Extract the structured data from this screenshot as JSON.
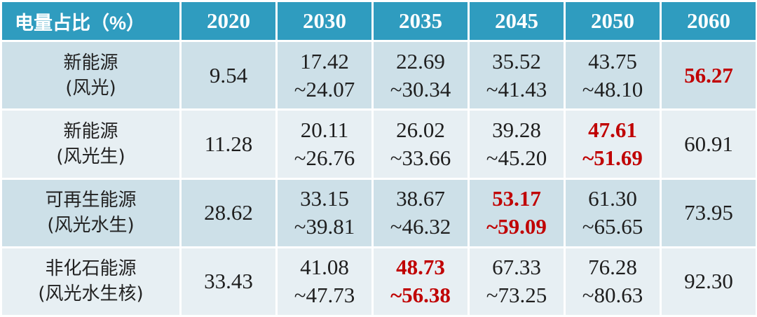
{
  "header": {
    "label": "电量占比（%）",
    "years": [
      "2020",
      "2030",
      "2035",
      "2045",
      "2050",
      "2060"
    ]
  },
  "rows": [
    {
      "label": [
        "新能源",
        "(风光)"
      ],
      "cells": [
        {
          "lines": [
            "9.54"
          ],
          "highlight": false
        },
        {
          "lines": [
            "17.42",
            "~24.07"
          ],
          "highlight": false
        },
        {
          "lines": [
            "22.69",
            "~30.34"
          ],
          "highlight": false
        },
        {
          "lines": [
            "35.52",
            "~41.43"
          ],
          "highlight": false
        },
        {
          "lines": [
            "43.75",
            "~48.10"
          ],
          "highlight": false
        },
        {
          "lines": [
            "56.27"
          ],
          "highlight": true
        }
      ]
    },
    {
      "label": [
        "新能源",
        "(风光生)"
      ],
      "cells": [
        {
          "lines": [
            "11.28"
          ],
          "highlight": false
        },
        {
          "lines": [
            "20.11",
            "~26.76"
          ],
          "highlight": false
        },
        {
          "lines": [
            "26.02",
            "~33.66"
          ],
          "highlight": false
        },
        {
          "lines": [
            "39.28",
            "~45.20"
          ],
          "highlight": false
        },
        {
          "lines": [
            "47.61",
            "~51.69"
          ],
          "highlight": true
        },
        {
          "lines": [
            "60.91"
          ],
          "highlight": false
        }
      ]
    },
    {
      "label": [
        "可再生能源",
        "(风光水生)"
      ],
      "cells": [
        {
          "lines": [
            "28.62"
          ],
          "highlight": false
        },
        {
          "lines": [
            "33.15",
            "~39.81"
          ],
          "highlight": false
        },
        {
          "lines": [
            "38.67",
            "~46.32"
          ],
          "highlight": false
        },
        {
          "lines": [
            "53.17",
            "~59.09"
          ],
          "highlight": true
        },
        {
          "lines": [
            "61.30",
            "~65.65"
          ],
          "highlight": false
        },
        {
          "lines": [
            "73.95"
          ],
          "highlight": false
        }
      ]
    },
    {
      "label": [
        "非化石能源",
        "(风光水生核)"
      ],
      "cells": [
        {
          "lines": [
            "33.43"
          ],
          "highlight": false
        },
        {
          "lines": [
            "41.08",
            "~47.73"
          ],
          "highlight": false
        },
        {
          "lines": [
            "48.73",
            "~56.38"
          ],
          "highlight": true
        },
        {
          "lines": [
            "67.33",
            "~73.25"
          ],
          "highlight": false
        },
        {
          "lines": [
            "76.28",
            "~80.63"
          ],
          "highlight": false
        },
        {
          "lines": [
            "92.30"
          ],
          "highlight": false
        }
      ]
    }
  ],
  "colors": {
    "header_bg": "#2f9cbf",
    "row_dark": "#cde0e8",
    "row_light": "#e7eff3",
    "highlight": "#c00000"
  }
}
